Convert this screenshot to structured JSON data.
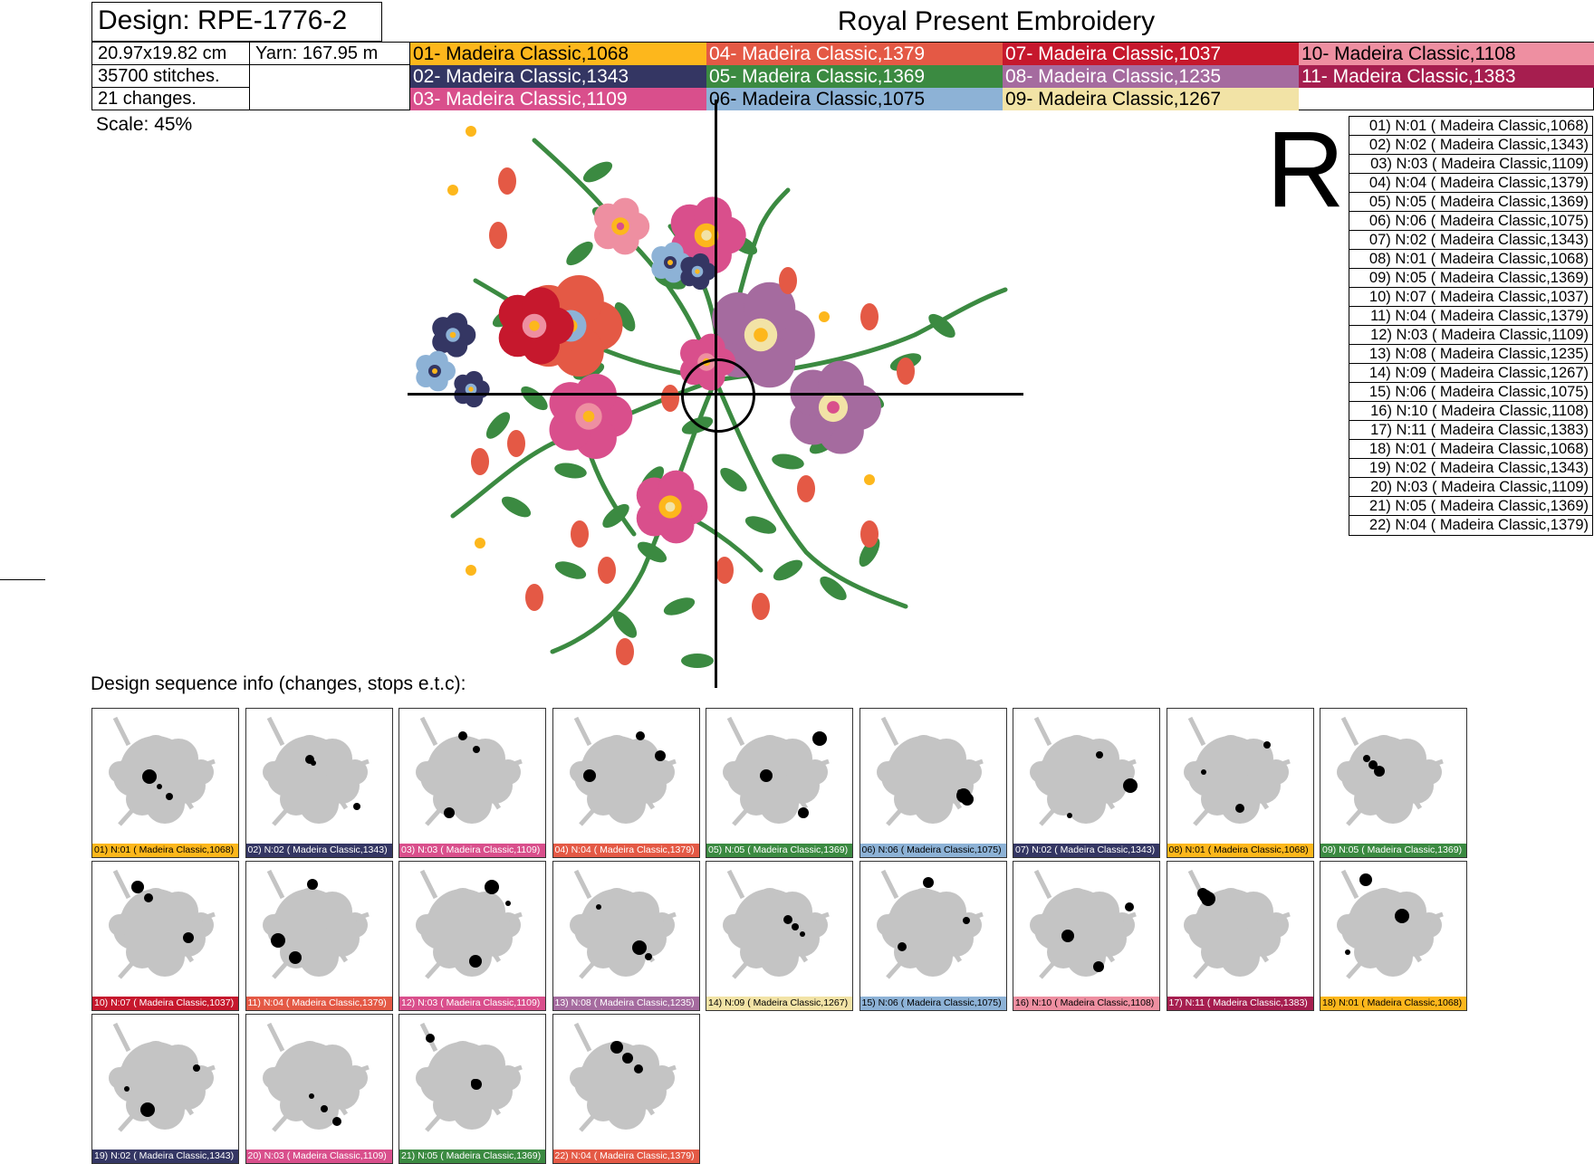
{
  "header": {
    "design_title": "Design: RPE-1776-2",
    "brand": "Royal Present Embroidery",
    "size": "20.97x19.82 cm",
    "yarn": "Yarn: 167.95 m",
    "stitches": "35700 stitches.",
    "changes": "21 changes.",
    "scale": "Scale: 45%",
    "side_letter": "R"
  },
  "palette": [
    {
      "label": "01- Madeira Classic,1068",
      "color": "#FDB71C",
      "text": "#000"
    },
    {
      "label": "02- Madeira Classic,1343",
      "color": "#343663",
      "text": "#fff"
    },
    {
      "label": "03- Madeira Classic,1109",
      "color": "#D94F8C",
      "text": "#fff"
    },
    {
      "label": "04- Madeira Classic,1379",
      "color": "#E45945",
      "text": "#fff"
    },
    {
      "label": "05- Madeira Classic,1369",
      "color": "#3B8A41",
      "text": "#fff"
    },
    {
      "label": "06- Madeira Classic,1075",
      "color": "#8DB2D6",
      "text": "#000"
    },
    {
      "label": "07- Madeira Classic,1037",
      "color": "#C6182D",
      "text": "#fff"
    },
    {
      "label": "08- Madeira Classic,1235",
      "color": "#A56B9F",
      "text": "#fff"
    },
    {
      "label": "09- Madeira Classic,1267",
      "color": "#F2E3A6",
      "text": "#000"
    },
    {
      "label": "10- Madeira Classic,1108",
      "color": "#EE8FA1",
      "text": "#000"
    },
    {
      "label": "11- Madeira Classic,1383",
      "color": "#A61E4F",
      "text": "#fff"
    }
  ],
  "sequence_list": [
    "01) N:01 ( Madeira Classic,1068)",
    "02) N:02 ( Madeira Classic,1343)",
    "03) N:03 ( Madeira Classic,1109)",
    "04) N:04 ( Madeira Classic,1379)",
    "05) N:05 ( Madeira Classic,1369)",
    "06) N:06 ( Madeira Classic,1075)",
    "07) N:02 ( Madeira Classic,1343)",
    "08) N:01 ( Madeira Classic,1068)",
    "09) N:05 ( Madeira Classic,1369)",
    "10) N:07 ( Madeira Classic,1037)",
    "11) N:04 ( Madeira Classic,1379)",
    "12) N:03 ( Madeira Classic,1109)",
    "13) N:08 ( Madeira Classic,1235)",
    "14) N:09 ( Madeira Classic,1267)",
    "15) N:06 ( Madeira Classic,1075)",
    "16) N:10 ( Madeira Classic,1108)",
    "17) N:11 ( Madeira Classic,1383)",
    "18) N:01 ( Madeira Classic,1068)",
    "19) N:02 ( Madeira Classic,1343)",
    "20) N:03 ( Madeira Classic,1109)",
    "21) N:05 ( Madeira Classic,1369)",
    "22) N:04 ( Madeira Classic,1379)"
  ],
  "sequence_heading": "Design sequence info (changes, stops e.t.c):",
  "thumbnails": [
    {
      "caption": "01) N:01 ( Madeira Classic,1068)",
      "color": "#FDB71C",
      "text": "#000"
    },
    {
      "caption": "02) N:02 ( Madeira Classic,1343)",
      "color": "#343663",
      "text": "#fff"
    },
    {
      "caption": "03) N:03 ( Madeira Classic,1109)",
      "color": "#D94F8C",
      "text": "#fff"
    },
    {
      "caption": "04) N:04 ( Madeira Classic,1379)",
      "color": "#E45945",
      "text": "#fff"
    },
    {
      "caption": "05) N:05 ( Madeira Classic,1369)",
      "color": "#3B8A41",
      "text": "#fff"
    },
    {
      "caption": "06) N:06 ( Madeira Classic,1075)",
      "color": "#8DB2D6",
      "text": "#000"
    },
    {
      "caption": "07) N:02 ( Madeira Classic,1343)",
      "color": "#343663",
      "text": "#fff"
    },
    {
      "caption": "08) N:01 ( Madeira Classic,1068)",
      "color": "#FDB71C",
      "text": "#000"
    },
    {
      "caption": "09) N:05 ( Madeira Classic,1369)",
      "color": "#3B8A41",
      "text": "#fff"
    },
    {
      "caption": "10) N:07 ( Madeira Classic,1037)",
      "color": "#C6182D",
      "text": "#fff"
    },
    {
      "caption": "11) N:04 ( Madeira Classic,1379)",
      "color": "#E45945",
      "text": "#fff"
    },
    {
      "caption": "12) N:03 ( Madeira Classic,1109)",
      "color": "#D94F8C",
      "text": "#fff"
    },
    {
      "caption": "13) N:08 ( Madeira Classic,1235)",
      "color": "#A56B9F",
      "text": "#fff"
    },
    {
      "caption": "14) N:09 ( Madeira Classic,1267)",
      "color": "#F2E3A6",
      "text": "#000"
    },
    {
      "caption": "15) N:06 ( Madeira Classic,1075)",
      "color": "#8DB2D6",
      "text": "#000"
    },
    {
      "caption": "16) N:10 ( Madeira Classic,1108)",
      "color": "#EE8FA1",
      "text": "#000"
    },
    {
      "caption": "17) N:11 ( Madeira Classic,1383)",
      "color": "#A61E4F",
      "text": "#fff"
    },
    {
      "caption": "18) N:01 ( Madeira Classic,1068)",
      "color": "#FDB71C",
      "text": "#000"
    },
    {
      "caption": "19) N:02 ( Madeira Classic,1343)",
      "color": "#343663",
      "text": "#fff"
    },
    {
      "caption": "20) N:03 ( Madeira Classic,1109)",
      "color": "#D94F8C",
      "text": "#fff"
    },
    {
      "caption": "21) N:05 ( Madeira Classic,1369)",
      "color": "#3B8A41",
      "text": "#fff"
    },
    {
      "caption": "22) N:04 ( Madeira Classic,1379)",
      "color": "#E45945",
      "text": "#fff"
    }
  ]
}
